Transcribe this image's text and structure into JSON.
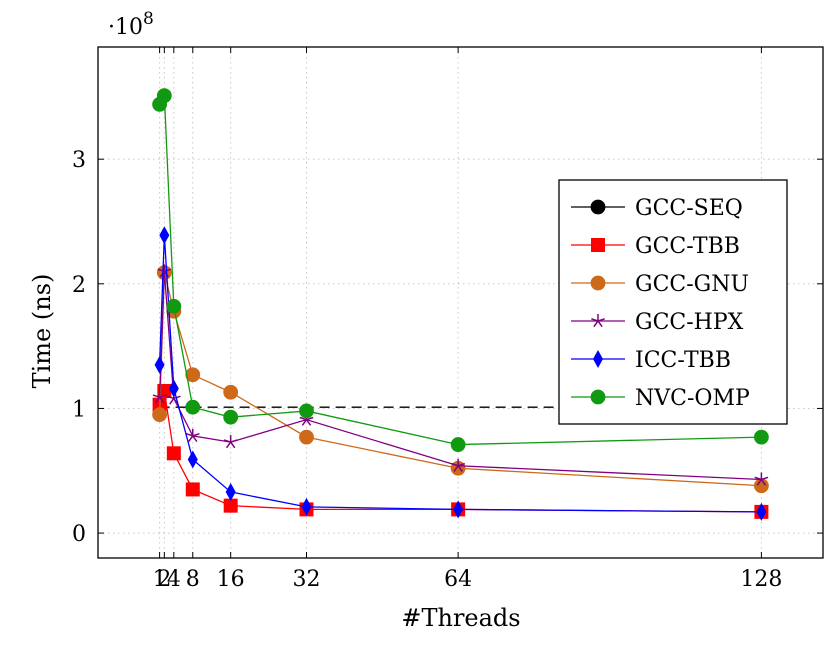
{
  "chart_data": {
    "type": "line",
    "xlabel": "#Threads",
    "ylabel": "Time (ns)",
    "y_scale_label": "·10",
    "y_scale_exponent": "8",
    "xticks": [
      1,
      2,
      4,
      8,
      16,
      32,
      64,
      128
    ],
    "yticks": [
      0,
      1,
      2,
      3
    ],
    "xlim": [
      -12,
      141
    ],
    "ylim": [
      -0.2,
      3.9
    ],
    "grid": true,
    "legend_position": "right",
    "series": [
      {
        "name": "GCC-SEQ",
        "color": "#000000",
        "marker": "circle",
        "dashed": true,
        "x": [
          1,
          128
        ],
        "y": [
          1.01,
          1.01
        ]
      },
      {
        "name": "GCC-TBB",
        "color": "#ff0000",
        "marker": "square",
        "x": [
          1,
          2,
          4,
          8,
          16,
          32,
          64,
          128
        ],
        "y": [
          1.03,
          1.14,
          0.64,
          0.35,
          0.22,
          0.19,
          0.19,
          0.17
        ]
      },
      {
        "name": "GCC-GNU",
        "color": "#cc6a1a",
        "marker": "circle",
        "x": [
          1,
          2,
          4,
          8,
          16,
          32,
          64,
          128
        ],
        "y": [
          0.95,
          2.09,
          1.78,
          1.27,
          1.13,
          0.77,
          0.52,
          0.38
        ]
      },
      {
        "name": "GCC-HPX",
        "color": "#800080",
        "marker": "star",
        "x": [
          1,
          2,
          4,
          8,
          16,
          32,
          64,
          128
        ],
        "y": [
          1.09,
          2.1,
          1.08,
          0.78,
          0.73,
          0.91,
          0.54,
          0.43
        ]
      },
      {
        "name": "ICC-TBB",
        "color": "#0000ff",
        "marker": "diamond",
        "x": [
          1,
          2,
          4,
          8,
          16,
          32,
          64,
          128
        ],
        "y": [
          1.35,
          2.39,
          1.16,
          0.59,
          0.33,
          0.21,
          0.19,
          0.17
        ]
      },
      {
        "name": "NVC-OMP",
        "color": "#119a11",
        "marker": "circle",
        "x": [
          1,
          2,
          4,
          8,
          16,
          32,
          64,
          128
        ],
        "y": [
          3.44,
          3.51,
          1.82,
          1.01,
          0.93,
          0.98,
          0.71,
          0.77
        ]
      }
    ]
  }
}
